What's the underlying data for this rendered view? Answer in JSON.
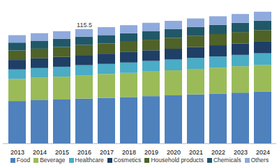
{
  "chart_data": {
    "type": "bar",
    "stacked": true,
    "tick_labels": "x",
    "legend": "bottom",
    "categories": [
      "2013",
      "2014",
      "2015",
      "2016",
      "2017",
      "2018",
      "2019",
      "2020",
      "2021",
      "2022",
      "2023",
      "2024"
    ],
    "ylim": [
      0,
      135
    ],
    "series": [
      {
        "name": "Food",
        "color": "#4f81bd",
        "values": [
          42.8,
          43.6,
          44.3,
          45.2,
          46.0,
          46.8,
          47.7,
          48.5,
          49.4,
          50.3,
          51.2,
          52.1
        ]
      },
      {
        "name": "Beverage",
        "color": "#9bbb59",
        "values": [
          22.3,
          22.7,
          23.1,
          23.6,
          24.0,
          24.4,
          24.9,
          25.3,
          25.8,
          26.2,
          26.7,
          27.2
        ]
      },
      {
        "name": "Healthcare",
        "color": "#4bacc6",
        "values": [
          9.6,
          9.8,
          10.0,
          10.2,
          10.3,
          10.5,
          10.7,
          10.9,
          11.1,
          11.3,
          11.5,
          11.7
        ]
      },
      {
        "name": "Cosmetics",
        "color": "#1f3f66",
        "values": [
          9.6,
          9.8,
          10.0,
          10.2,
          10.3,
          10.5,
          10.7,
          10.9,
          11.1,
          11.3,
          11.5,
          11.7
        ]
      },
      {
        "name": "Household products",
        "color": "#4f6228",
        "values": [
          9.6,
          9.8,
          10.0,
          10.2,
          10.3,
          10.5,
          10.7,
          10.9,
          11.1,
          11.3,
          11.5,
          11.7
        ]
      },
      {
        "name": "Chemicals",
        "color": "#215868",
        "values": [
          7.9,
          8.0,
          8.2,
          8.3,
          8.5,
          8.6,
          8.8,
          8.9,
          9.1,
          9.3,
          9.4,
          9.6
        ]
      },
      {
        "name": "Others",
        "color": "#8faadc",
        "values": [
          7.5,
          7.6,
          7.7,
          7.8,
          8.0,
          8.1,
          8.3,
          8.4,
          8.6,
          8.7,
          8.9,
          9.0
        ]
      }
    ],
    "annotations": [
      {
        "x": "2016",
        "y": 115.5,
        "text": "115.5"
      }
    ]
  }
}
